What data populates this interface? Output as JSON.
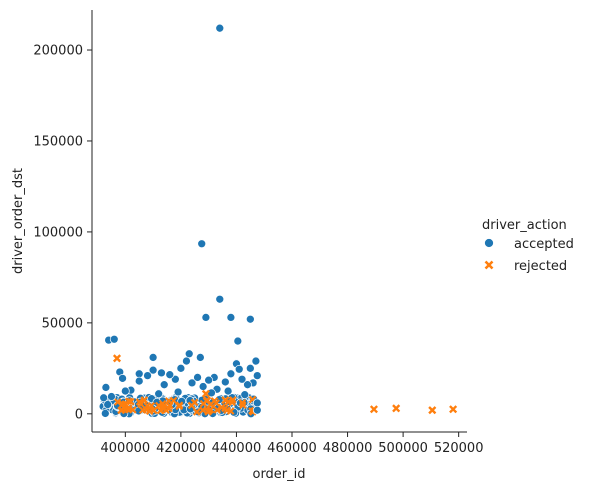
{
  "chart_data": {
    "type": "scatter",
    "xlabel": "order_id",
    "ylabel": "driver_order_dst",
    "xlim": [
      388000,
      523000
    ],
    "ylim": [
      -10000,
      222000
    ],
    "xticks": [
      400000,
      420000,
      440000,
      460000,
      480000,
      500000,
      520000
    ],
    "yticks": [
      0,
      50000,
      100000,
      150000,
      200000
    ],
    "grid": false,
    "legend": {
      "title": "driver_action",
      "placement": "center-right outside",
      "entries": [
        "accepted",
        "rejected"
      ]
    },
    "series": [
      {
        "name": "accepted",
        "marker": "circle",
        "color": "#1f77b4",
        "points": [
          [
            434000,
            212000
          ],
          [
            427500,
            93500
          ],
          [
            434000,
            63000
          ],
          [
            429000,
            53000
          ],
          [
            438000,
            53000
          ],
          [
            445000,
            52000
          ],
          [
            440500,
            40000
          ],
          [
            394000,
            40500
          ],
          [
            396000,
            41000
          ],
          [
            410000,
            31000
          ],
          [
            427000,
            31000
          ],
          [
            423000,
            33000
          ],
          [
            447000,
            29000
          ],
          [
            440000,
            27500
          ],
          [
            445000,
            25000
          ],
          [
            441000,
            24500
          ],
          [
            398000,
            23000
          ],
          [
            413000,
            22500
          ],
          [
            405000,
            22000
          ],
          [
            410000,
            24000
          ],
          [
            432000,
            20000
          ],
          [
            418000,
            19000
          ],
          [
            420000,
            25000
          ],
          [
            422000,
            29000
          ],
          [
            399000,
            19500
          ],
          [
            405000,
            18000
          ],
          [
            408000,
            21000
          ],
          [
            414000,
            16000
          ],
          [
            424000,
            17000
          ],
          [
            428000,
            15000
          ],
          [
            430000,
            18500
          ],
          [
            436000,
            17500
          ],
          [
            438000,
            22000
          ],
          [
            442000,
            19000
          ],
          [
            446000,
            17000
          ],
          [
            447500,
            21000
          ],
          [
            402000,
            13000
          ],
          [
            400000,
            12500
          ],
          [
            393000,
            14500
          ],
          [
            395000,
            9500
          ],
          [
            416000,
            21500
          ],
          [
            426000,
            20000
          ],
          [
            433000,
            13500
          ],
          [
            444000,
            16000
          ],
          [
            412000,
            11000
          ],
          [
            419000,
            12000
          ],
          [
            431000,
            11500
          ],
          [
            437000,
            12500
          ],
          [
            443000,
            10500
          ],
          [
            447500,
            6000
          ],
          [
            447500,
            2000
          ]
        ]
      },
      {
        "name": "rejected",
        "marker": "x",
        "color": "#ff7f0e",
        "points": [
          [
            397000,
            30500
          ],
          [
            429000,
            11000
          ],
          [
            436000,
            7500
          ],
          [
            489500,
            2500
          ],
          [
            497500,
            3000
          ],
          [
            510500,
            2000
          ],
          [
            518000,
            2500
          ]
        ]
      }
    ]
  }
}
